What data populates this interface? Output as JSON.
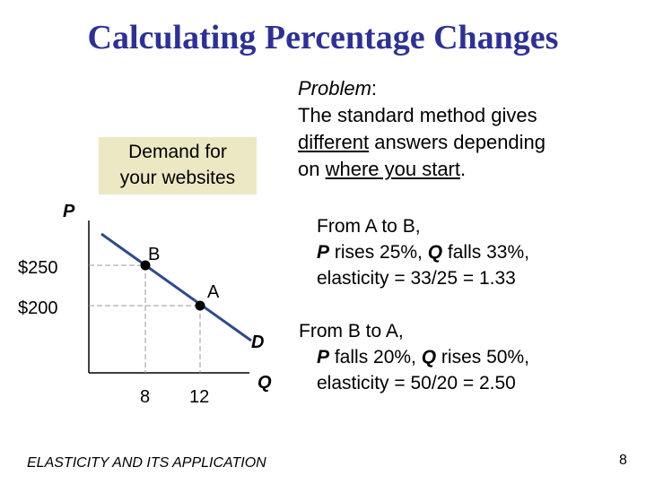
{
  "title": "Calculating Percentage Changes",
  "legend": {
    "line1": "Demand for",
    "line2": "your websites"
  },
  "problem": {
    "label": "Problem",
    "colon": ":",
    "line1": "The standard method gives",
    "line2_u": "different",
    "line2_rest": " answers depending",
    "line3_pre": "on ",
    "line3_u": "where you start",
    "line3_post": "."
  },
  "a_to_b": {
    "line1": "From A to B,",
    "p": "P",
    "p_text": " rises 25%, ",
    "q": "Q",
    "q_text": " falls 33%,",
    "line3": "elasticity = 33/25 = 1.33"
  },
  "b_to_a": {
    "line1": "From B to A,",
    "p": "P",
    "p_text": " falls 20%, ",
    "q": "Q",
    "q_text": " rises 50%,",
    "line3": "elasticity = 50/20 = 2.50"
  },
  "graph": {
    "y_axis_label": "P",
    "x_axis_label": "Q",
    "curve_label": "D",
    "price_ticks": [
      "$250",
      "$200"
    ],
    "quantity_ticks": [
      "8",
      "12"
    ],
    "point_b": "B",
    "point_a": "A",
    "line_color": "#2e4a8a"
  },
  "footer": "ELASTICITY AND ITS APPLICATION",
  "page_number": "8"
}
